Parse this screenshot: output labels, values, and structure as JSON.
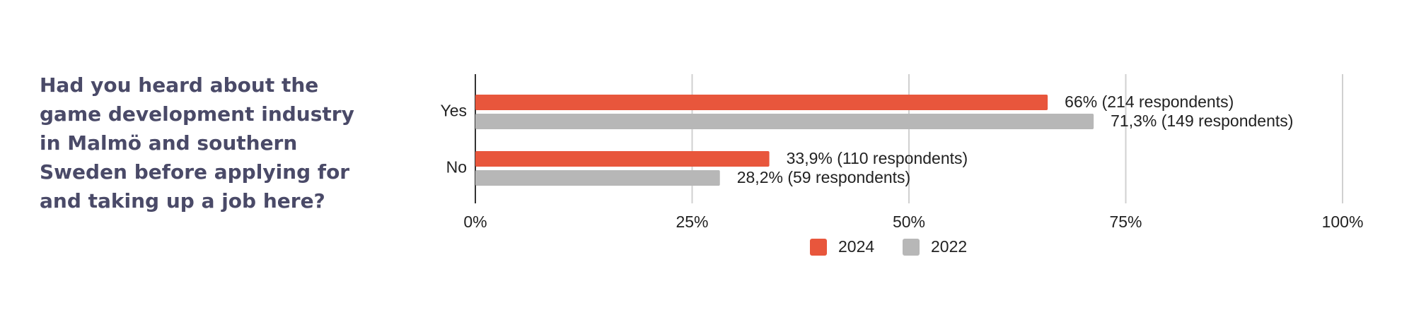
{
  "chart_data": {
    "type": "bar",
    "orientation": "horizontal",
    "title": "Had you heard about the game development industry in Malmö and southern Sweden before applying for and taking up a job here?",
    "categories": [
      "Yes",
      "No"
    ],
    "series": [
      {
        "name": "2024",
        "color": "#e8563c",
        "values": [
          66,
          33.9
        ],
        "value_labels": [
          "66% (214 respondents)",
          "33,9% (110 respondents)"
        ]
      },
      {
        "name": "2022",
        "color": "#b7b7b7",
        "values": [
          71.3,
          28.2
        ],
        "value_labels": [
          "71,3% (149 respondents)",
          "28,2% (59 respondents)"
        ]
      }
    ],
    "xlim": [
      0,
      100
    ],
    "xticks": [
      {
        "value": 0,
        "label": "0%"
      },
      {
        "value": 25,
        "label": "25%"
      },
      {
        "value": 50,
        "label": "50%"
      },
      {
        "value": 75,
        "label": "75%"
      },
      {
        "value": 100,
        "label": "100%"
      }
    ],
    "grid": true,
    "legend": "bottom"
  }
}
